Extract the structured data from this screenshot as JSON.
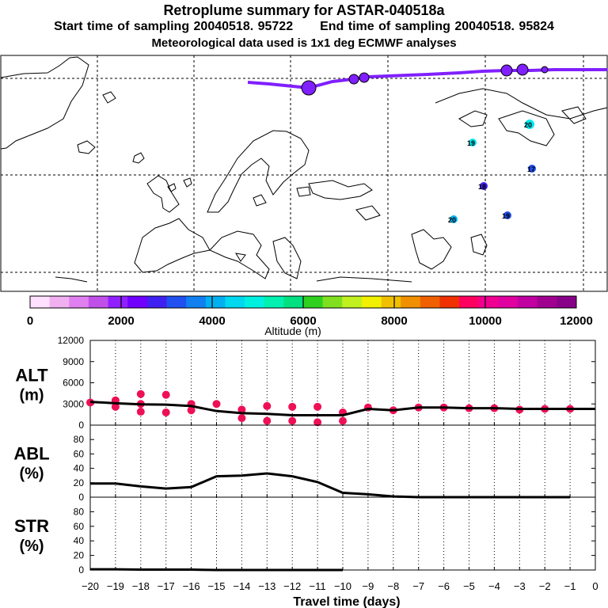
{
  "header": {
    "title": "Retroplume summary for ASTAR-040518a",
    "start_label": "Start time of sampling 20040518. 95722",
    "end_label": "End time of sampling 20040518. 95824",
    "met_label": "Meteorological data used is 1x1 deg ECMWF analyses"
  },
  "map": {
    "plume_color": "#8020ff",
    "cluster_labels": [
      "20",
      "19",
      "17",
      "18",
      "20",
      "19"
    ]
  },
  "colorbar": {
    "title": "Altitude (m)",
    "tick_labels": [
      "0",
      "2000",
      "4000",
      "6000",
      "8000",
      "10000",
      "12000"
    ],
    "colors": [
      "#ffe0ff",
      "#f0b0f0",
      "#e080f0",
      "#c050e8",
      "#9020ff",
      "#7000ff",
      "#4020f0",
      "#2050f0",
      "#1080f0",
      "#00b0f0",
      "#00d8f0",
      "#00f0e0",
      "#00f0b0",
      "#00e080",
      "#30d020",
      "#80e020",
      "#c0f020",
      "#f0f000",
      "#f0c000",
      "#f09000",
      "#f06000",
      "#f03000",
      "#ff0060",
      "#f00090",
      "#e000a0",
      "#c000a0",
      "#a00090",
      "#880088"
    ]
  },
  "chart_data": [
    {
      "type": "line",
      "title": "ALT (m)",
      "panel_label_1": "ALT",
      "panel_label_2": "(m)",
      "xlabel": "Travel time (days)",
      "ylabel": "Altitude (m)",
      "x": [
        -20,
        -19,
        -18,
        -17,
        -16,
        -15,
        -14,
        -13,
        -12,
        -11,
        -10,
        -9,
        -8,
        -7,
        -6,
        -5,
        -4,
        -3,
        -2,
        -1,
        0
      ],
      "values": [
        3300,
        3100,
        2950,
        2900,
        2700,
        2000,
        1700,
        1600,
        1400,
        1400,
        1400,
        2300,
        2100,
        2500,
        2500,
        2400,
        2400,
        2300,
        2300,
        2300,
        2300
      ],
      "ylim": [
        0,
        12000
      ],
      "yticks": [
        "0",
        "3000",
        "6000",
        "9000",
        "12000"
      ],
      "scatter": {
        "color": "#ee1055",
        "points": [
          {
            "x": -20,
            "y": 3200
          },
          {
            "x": -19,
            "y": 3500
          },
          {
            "x": -19,
            "y": 2600
          },
          {
            "x": -18,
            "y": 4400
          },
          {
            "x": -18,
            "y": 3000
          },
          {
            "x": -18,
            "y": 1900
          },
          {
            "x": -17,
            "y": 4300
          },
          {
            "x": -17,
            "y": 1800
          },
          {
            "x": -16,
            "y": 3000
          },
          {
            "x": -16,
            "y": 2100
          },
          {
            "x": -15,
            "y": 3000
          },
          {
            "x": -14,
            "y": 2200
          },
          {
            "x": -14,
            "y": 1000
          },
          {
            "x": -13,
            "y": 2700
          },
          {
            "x": -13,
            "y": 600
          },
          {
            "x": -12,
            "y": 2600
          },
          {
            "x": -12,
            "y": 600
          },
          {
            "x": -11,
            "y": 2600
          },
          {
            "x": -11,
            "y": 400
          },
          {
            "x": -10,
            "y": 1800
          },
          {
            "x": -10,
            "y": 600
          },
          {
            "x": -9,
            "y": 2500
          },
          {
            "x": -8,
            "y": 2100
          },
          {
            "x": -7,
            "y": 2500
          },
          {
            "x": -6,
            "y": 2500
          },
          {
            "x": -5,
            "y": 2400
          },
          {
            "x": -4,
            "y": 2400
          },
          {
            "x": -3,
            "y": 2200
          },
          {
            "x": -2,
            "y": 2300
          },
          {
            "x": -1,
            "y": 2300
          }
        ]
      }
    },
    {
      "type": "line",
      "title": "ABL (%)",
      "panel_label_1": "ABL",
      "panel_label_2": "(%)",
      "x": [
        -20,
        -19,
        -18,
        -17,
        -16,
        -15,
        -14,
        -13,
        -12,
        -11,
        -10,
        -9,
        -8,
        -7,
        -6,
        -5,
        -4,
        -3,
        -2,
        -1
      ],
      "values": [
        19,
        19,
        15,
        12,
        14,
        29,
        30,
        33,
        29,
        21,
        6,
        4,
        1,
        0,
        0,
        0,
        0,
        0,
        0,
        0
      ],
      "ylim": [
        0,
        100
      ],
      "yticks": [
        "0",
        "20",
        "40",
        "60",
        "80"
      ]
    },
    {
      "type": "line",
      "title": "STR (%)",
      "panel_label_1": "STR",
      "panel_label_2": "(%)",
      "x": [
        -20,
        -19,
        -18,
        -17,
        -16,
        -15,
        -14,
        -13,
        -12,
        -11,
        -10
      ],
      "values": [
        1,
        1,
        0.5,
        0.5,
        0.5,
        0,
        0,
        0,
        0,
        0,
        0
      ],
      "ylim": [
        0,
        100
      ],
      "yticks": [
        "0",
        "20",
        "40",
        "60",
        "80"
      ]
    }
  ],
  "x_axis": {
    "label": "Travel time (days)",
    "tick_labels": [
      "−20",
      "−19",
      "−18",
      "−17",
      "−16",
      "−15",
      "−14",
      "−13",
      "−12",
      "−11",
      "−10",
      "−9",
      "−8",
      "−7",
      "−6",
      "−5",
      "−4",
      "−3",
      "−2",
      "−1",
      "0"
    ]
  }
}
